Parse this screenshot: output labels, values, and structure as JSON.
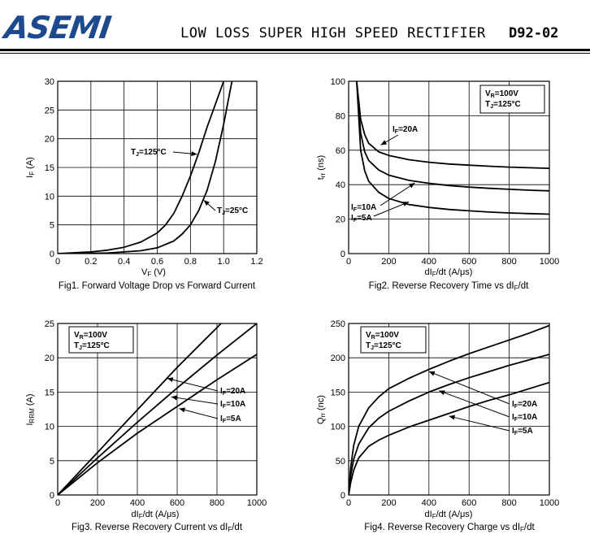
{
  "header": {
    "logo": "ASEMI",
    "title": "LOW LOSS SUPER HIGH SPEED RECTIFIER",
    "part_number": "D92-02"
  },
  "chart_data": [
    {
      "id": "fig1",
      "type": "line",
      "caption": "Fig1. Forward Voltage Drop vs Forward Current",
      "xlabel": "VF (V)",
      "ylabel": "IF (A)",
      "xlim": [
        0,
        1.2
      ],
      "ylim": [
        0,
        30
      ],
      "xticks": [
        0,
        0.2,
        0.4,
        0.6,
        0.8,
        1.0,
        1.2
      ],
      "xtick_labels": [
        "0",
        "0.2",
        "0.4",
        "0.6",
        "0.8",
        "1.0",
        "1.2"
      ],
      "yticks": [
        0,
        5,
        10,
        15,
        20,
        25,
        30
      ],
      "grid": true,
      "series": [
        {
          "name": "TJ=125°C",
          "x": [
            0,
            0.2,
            0.3,
            0.4,
            0.5,
            0.6,
            0.65,
            0.7,
            0.75,
            0.8,
            0.85,
            0.9,
            0.95,
            1.0
          ],
          "y": [
            0,
            0.3,
            0.6,
            1.1,
            2.0,
            3.6,
            5.0,
            7.0,
            10.0,
            13.5,
            17.5,
            22.0,
            26.0,
            30.0
          ]
        },
        {
          "name": "TJ=25°C",
          "x": [
            0,
            0.3,
            0.5,
            0.6,
            0.7,
            0.75,
            0.8,
            0.85,
            0.9,
            0.95,
            1.0,
            1.05
          ],
          "y": [
            0,
            0.1,
            0.5,
            1.0,
            2.2,
            3.4,
            5.0,
            7.5,
            11.0,
            16.0,
            22.5,
            30.0
          ]
        }
      ]
    },
    {
      "id": "fig2",
      "type": "line",
      "caption": "Fig2. Reverse Recovery Time vs dIF/dt",
      "xlabel": "dIF/dt (A/μs)",
      "ylabel": "trr (ns)",
      "xlim": [
        0,
        1000
      ],
      "ylim": [
        0,
        100
      ],
      "xticks": [
        0,
        200,
        400,
        600,
        800,
        1000
      ],
      "yticks": [
        0,
        20,
        40,
        60,
        80,
        100
      ],
      "grid": true,
      "conditions": [
        "VR=100V",
        "TJ=125°C"
      ],
      "series": [
        {
          "name": "IF=20A",
          "x": [
            40,
            60,
            80,
            100,
            150,
            200,
            300,
            400,
            500,
            600,
            700,
            800,
            900,
            1000
          ],
          "y": [
            100,
            78,
            69,
            64,
            59,
            57,
            54.5,
            53,
            52,
            51.3,
            50.7,
            50.2,
            49.8,
            49.5
          ]
        },
        {
          "name": "IF=10A",
          "x": [
            40,
            60,
            80,
            100,
            150,
            200,
            300,
            400,
            500,
            600,
            700,
            800,
            900,
            1000
          ],
          "y": [
            100,
            70,
            59,
            54,
            48.5,
            45.5,
            42.5,
            40.8,
            39.5,
            38.6,
            37.9,
            37.3,
            36.8,
            36.4
          ]
        },
        {
          "name": "IF=5A",
          "x": [
            40,
            60,
            80,
            100,
            150,
            200,
            300,
            400,
            500,
            600,
            700,
            800,
            900,
            1000
          ],
          "y": [
            100,
            60,
            48,
            42,
            35.5,
            32,
            28.5,
            26.8,
            25.6,
            24.8,
            24.1,
            23.6,
            23.2,
            22.9
          ]
        }
      ]
    },
    {
      "id": "fig3",
      "type": "line",
      "caption": "Fig3. Reverse Recovery Current vs dIF/dt",
      "xlabel": "dIF/dt (A/μs)",
      "ylabel": "IRRM (A)",
      "xlim": [
        0,
        1000
      ],
      "ylim": [
        0,
        25
      ],
      "xticks": [
        0,
        200,
        400,
        600,
        800,
        1000
      ],
      "yticks": [
        0,
        5,
        10,
        15,
        20,
        25
      ],
      "grid": true,
      "conditions": [
        "VR=100V",
        "TJ=125°C"
      ],
      "series": [
        {
          "name": "IF=20A",
          "x": [
            0,
            200,
            400,
            600,
            800,
            820
          ],
          "y": [
            0,
            6.2,
            12.4,
            18.6,
            24.4,
            25.0
          ]
        },
        {
          "name": "IF=10A",
          "x": [
            0,
            200,
            400,
            600,
            800,
            1000
          ],
          "y": [
            0,
            5.4,
            10.6,
            15.6,
            20.4,
            25.0
          ]
        },
        {
          "name": "IF=5A",
          "x": [
            0,
            200,
            400,
            600,
            800,
            1000
          ],
          "y": [
            0,
            4.7,
            9.0,
            12.9,
            16.8,
            20.5
          ]
        }
      ]
    },
    {
      "id": "fig4",
      "type": "line",
      "caption": "Fig4. Reverse Recovery Charge vs dIF/dt",
      "xlabel": "dIF/dt (A/μs)",
      "ylabel": "Qrr (nc)",
      "xlim": [
        0,
        1000
      ],
      "ylim": [
        0,
        250
      ],
      "xticks": [
        0,
        200,
        400,
        600,
        800,
        1000
      ],
      "yticks": [
        0,
        50,
        100,
        150,
        200,
        250
      ],
      "grid": true,
      "conditions": [
        "VR=100V",
        "TJ=125°C"
      ],
      "series": [
        {
          "name": "IF=20A",
          "x": [
            0,
            10,
            25,
            50,
            100,
            150,
            200,
            300,
            400,
            500,
            600,
            700,
            800,
            900,
            1000
          ],
          "y": [
            0,
            40,
            72,
            100,
            127,
            143,
            155,
            170,
            183,
            195,
            206,
            216,
            226,
            236,
            247
          ]
        },
        {
          "name": "IF=10A",
          "x": [
            0,
            10,
            25,
            50,
            100,
            150,
            200,
            300,
            400,
            500,
            600,
            700,
            800,
            900,
            1000
          ],
          "y": [
            0,
            28,
            52,
            74,
            98,
            112,
            122,
            137,
            150,
            161,
            171,
            180,
            189,
            197,
            205
          ]
        },
        {
          "name": "IF=5A",
          "x": [
            0,
            10,
            25,
            50,
            100,
            150,
            200,
            300,
            400,
            500,
            600,
            700,
            800,
            900,
            1000
          ],
          "y": [
            0,
            18,
            36,
            54,
            71,
            80,
            87,
            99,
            109,
            119,
            129,
            138,
            146,
            155,
            164
          ]
        }
      ]
    }
  ]
}
